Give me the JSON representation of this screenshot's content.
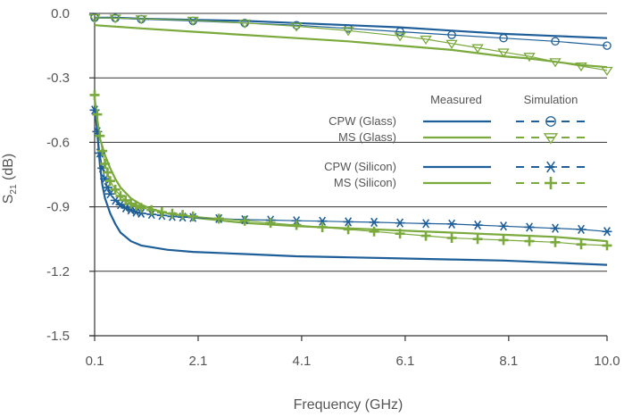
{
  "colors": {
    "blue": "#1f5f99",
    "green": "#7aa93c",
    "grid": "#333333",
    "text": "#555555"
  },
  "chart_data": {
    "type": "line",
    "xlabel": "Frequency (GHz)",
    "ylabel_main": "S",
    "ylabel_sub": "21",
    "ylabel_unit": "(dB)",
    "xlim": [
      0.1,
      10.0
    ],
    "ylim": [
      -1.5,
      0.0
    ],
    "x_ticks": [
      0.1,
      2.1,
      4.1,
      6.1,
      8.1,
      10.0
    ],
    "x_tick_labels": [
      "0.1",
      "2.1",
      "4.1",
      "6.1",
      "8.1",
      "10.0"
    ],
    "y_ticks": [
      0.0,
      -0.3,
      -0.6,
      -0.9,
      -1.2,
      -1.5
    ],
    "y_tick_labels": [
      "0.0",
      "-0.3",
      "-0.6",
      "-0.9",
      "-1.2",
      "-1.5"
    ],
    "grid": "horizontal",
    "legend": {
      "placement": "right-center",
      "headers": [
        "Measured",
        "Simulation"
      ],
      "entries": [
        "CPW (Glass)",
        "MS (Glass)",
        "CPW (Silicon)",
        "MS (Silicon)"
      ]
    },
    "series": [
      {
        "name": "CPW (Glass)",
        "kind": "measured",
        "color": "blue",
        "x": [
          0.1,
          0.5,
          1,
          2,
          3,
          4,
          5,
          6,
          7,
          8,
          9,
          10
        ],
        "y": [
          -0.02,
          -0.02,
          -0.025,
          -0.03,
          -0.035,
          -0.045,
          -0.055,
          -0.065,
          -0.08,
          -0.095,
          -0.105,
          -0.115
        ]
      },
      {
        "name": "MS (Glass)",
        "kind": "measured",
        "color": "green",
        "x": [
          0.1,
          1,
          2,
          3,
          4,
          5,
          6,
          7,
          7.5,
          8,
          8.5,
          9,
          9.5,
          10
        ],
        "y": [
          -0.055,
          -0.07,
          -0.085,
          -0.1,
          -0.115,
          -0.13,
          -0.15,
          -0.17,
          -0.185,
          -0.2,
          -0.21,
          -0.225,
          -0.24,
          -0.25
        ]
      },
      {
        "name": "CPW (Glass)",
        "kind": "simulation",
        "color": "blue",
        "marker": "circle",
        "x": [
          0.1,
          0.5,
          1,
          2,
          3,
          4,
          5,
          6,
          7,
          8,
          9,
          10
        ],
        "y": [
          -0.02,
          -0.022,
          -0.027,
          -0.035,
          -0.045,
          -0.055,
          -0.07,
          -0.085,
          -0.1,
          -0.115,
          -0.13,
          -0.15
        ]
      },
      {
        "name": "MS (Glass)",
        "kind": "simulation",
        "color": "green",
        "marker": "triangle-down",
        "x": [
          0.1,
          0.5,
          1,
          2,
          3,
          4,
          5,
          6,
          6.5,
          7,
          7.5,
          8,
          8.5,
          9,
          9.5,
          10
        ],
        "y": [
          -0.02,
          -0.022,
          -0.025,
          -0.032,
          -0.045,
          -0.06,
          -0.08,
          -0.105,
          -0.12,
          -0.14,
          -0.16,
          -0.18,
          -0.2,
          -0.225,
          -0.245,
          -0.265
        ]
      },
      {
        "name": "CPW (Silicon)",
        "kind": "measured",
        "color": "blue",
        "x": [
          0.1,
          0.15,
          0.2,
          0.25,
          0.3,
          0.4,
          0.5,
          0.6,
          0.8,
          1,
          1.5,
          2,
          3,
          4,
          5,
          6,
          7,
          8,
          9,
          10
        ],
        "y": [
          -0.43,
          -0.55,
          -0.7,
          -0.8,
          -0.86,
          -0.93,
          -0.98,
          -1.02,
          -1.06,
          -1.08,
          -1.1,
          -1.11,
          -1.12,
          -1.13,
          -1.135,
          -1.14,
          -1.145,
          -1.15,
          -1.16,
          -1.17
        ]
      },
      {
        "name": "MS (Silicon)",
        "kind": "measured",
        "color": "green",
        "x": [
          0.1,
          0.15,
          0.2,
          0.3,
          0.4,
          0.5,
          0.6,
          0.8,
          1,
          1.2,
          1.5,
          2,
          3,
          4,
          5,
          6,
          7,
          8,
          9,
          10
        ],
        "y": [
          -0.4,
          -0.5,
          -0.58,
          -0.66,
          -0.72,
          -0.77,
          -0.81,
          -0.86,
          -0.89,
          -0.91,
          -0.93,
          -0.95,
          -0.975,
          -0.99,
          -1.0,
          -1.01,
          -1.02,
          -1.03,
          -1.04,
          -1.06
        ]
      },
      {
        "name": "CPW (Silicon)",
        "kind": "simulation",
        "color": "blue",
        "marker": "asterisk",
        "x": [
          0.1,
          0.15,
          0.2,
          0.25,
          0.3,
          0.35,
          0.4,
          0.5,
          0.6,
          0.7,
          0.8,
          0.9,
          1.0,
          1.2,
          1.4,
          1.6,
          1.8,
          2.0,
          2.5,
          3,
          3.5,
          4,
          4.5,
          5,
          5.5,
          6,
          6.5,
          7,
          7.5,
          8,
          8.5,
          9,
          9.5,
          10
        ],
        "y": [
          -0.45,
          -0.55,
          -0.65,
          -0.72,
          -0.77,
          -0.81,
          -0.84,
          -0.87,
          -0.89,
          -0.905,
          -0.915,
          -0.925,
          -0.93,
          -0.935,
          -0.94,
          -0.945,
          -0.948,
          -0.95,
          -0.955,
          -0.96,
          -0.962,
          -0.965,
          -0.967,
          -0.97,
          -0.972,
          -0.975,
          -0.978,
          -0.98,
          -0.985,
          -0.99,
          -0.995,
          -1.0,
          -1.005,
          -1.015
        ]
      },
      {
        "name": "MS (Silicon)",
        "kind": "simulation",
        "color": "green",
        "marker": "plus",
        "x": [
          0.1,
          0.15,
          0.2,
          0.25,
          0.3,
          0.35,
          0.4,
          0.5,
          0.6,
          0.7,
          0.8,
          0.9,
          1.0,
          1.2,
          1.4,
          1.6,
          1.8,
          2.0,
          2.5,
          3,
          3.5,
          4,
          4.5,
          5,
          5.5,
          6,
          6.5,
          7,
          7.5,
          8,
          8.5,
          9,
          9.5,
          10
        ],
        "y": [
          -0.38,
          -0.47,
          -0.57,
          -0.64,
          -0.7,
          -0.74,
          -0.78,
          -0.82,
          -0.85,
          -0.87,
          -0.885,
          -0.895,
          -0.905,
          -0.915,
          -0.925,
          -0.932,
          -0.938,
          -0.945,
          -0.955,
          -0.965,
          -0.975,
          -0.985,
          -0.995,
          -1.005,
          -1.015,
          -1.025,
          -1.035,
          -1.045,
          -1.05,
          -1.055,
          -1.06,
          -1.065,
          -1.075,
          -1.08
        ]
      }
    ]
  }
}
